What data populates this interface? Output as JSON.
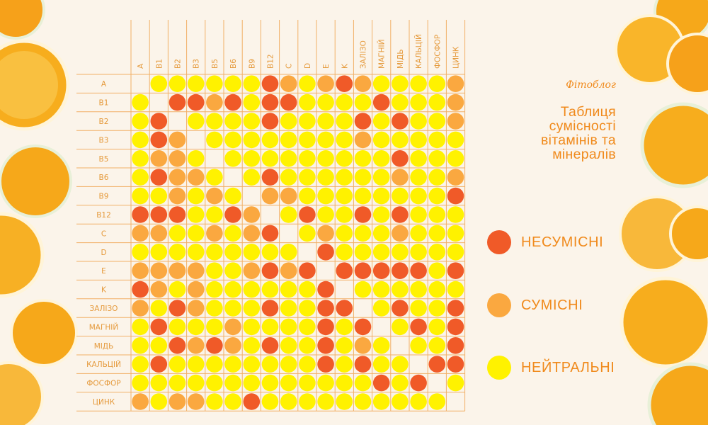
{
  "brand": "Фітоблог",
  "title": "Таблиця сумісності вітамінів та мінералів",
  "legend": [
    {
      "key": "N",
      "label": "НЕСУМІСНІ",
      "color": "#f05a28"
    },
    {
      "key": "C",
      "label": "СУМІСНІ",
      "color": "#faa840"
    },
    {
      "key": "Z",
      "label": "НЕЙТРАЛЬНІ",
      "color": "#fff200"
    }
  ],
  "chart_data": {
    "type": "heatmap",
    "rows": [
      "A",
      "B1",
      "B2",
      "B3",
      "B5",
      "B6",
      "B9",
      "B12",
      "C",
      "D",
      "E",
      "K",
      "ЗАЛІЗО",
      "МАГНІЙ",
      "МІДЬ",
      "КАЛЬЦІЙ",
      "ФОСФОР",
      "ЦИНК"
    ],
    "columns": [
      "A",
      "B1",
      "B2",
      "B3",
      "B5",
      "B6",
      "B9",
      "B12",
      "C",
      "D",
      "E",
      "K",
      "ЗАЛІЗО",
      "МАГНІЙ",
      "МІДЬ",
      "КАЛЬЦІЙ",
      "ФОСФОР",
      "ЦИНК"
    ],
    "categories": {
      "N": "НЕСУМІСНІ",
      "C": "СУМІСНІ",
      "Z": "НЕЙТРАЛЬНІ",
      "-": "—"
    },
    "cells": [
      "-ZZZZZZNCZCNCZZZZC",
      "Z-NNCNZNNZZZZNZZZC",
      "ZN-ZZZZNZZZZNZNZZC",
      "ZNC-ZZZZZZZZCZZZZZ",
      "ZCCZ-ZZZZZZZZZNZZZ",
      "ZNCCZ-ZNZZZZZZCZZC",
      "ZZCZCZ-CCZZZZZZZZN",
      "NNNZZNC-ZNZZNZNZZZ",
      "CCZZCZCN-ZCZZZCZZZ",
      "ZZZZZZZZZ-NZZZZZZZ",
      "CCCCZZCNCN-NNNNNZN",
      "NCZCZZZZZZN-ZZZZZZ",
      "CZNCZZZNZZNN-ZNZZN",
      "ZNZZZCZZZZNZN-ZNZN",
      "ZZNCNCZNZZNZCZ-ZZN",
      "ZNZZZZZZZZNZNZZ-NN",
      "ZZZZZZZZZZZZZNZN-Z",
      "CZCCZZNZZZZZZZZZZ-"
    ]
  }
}
